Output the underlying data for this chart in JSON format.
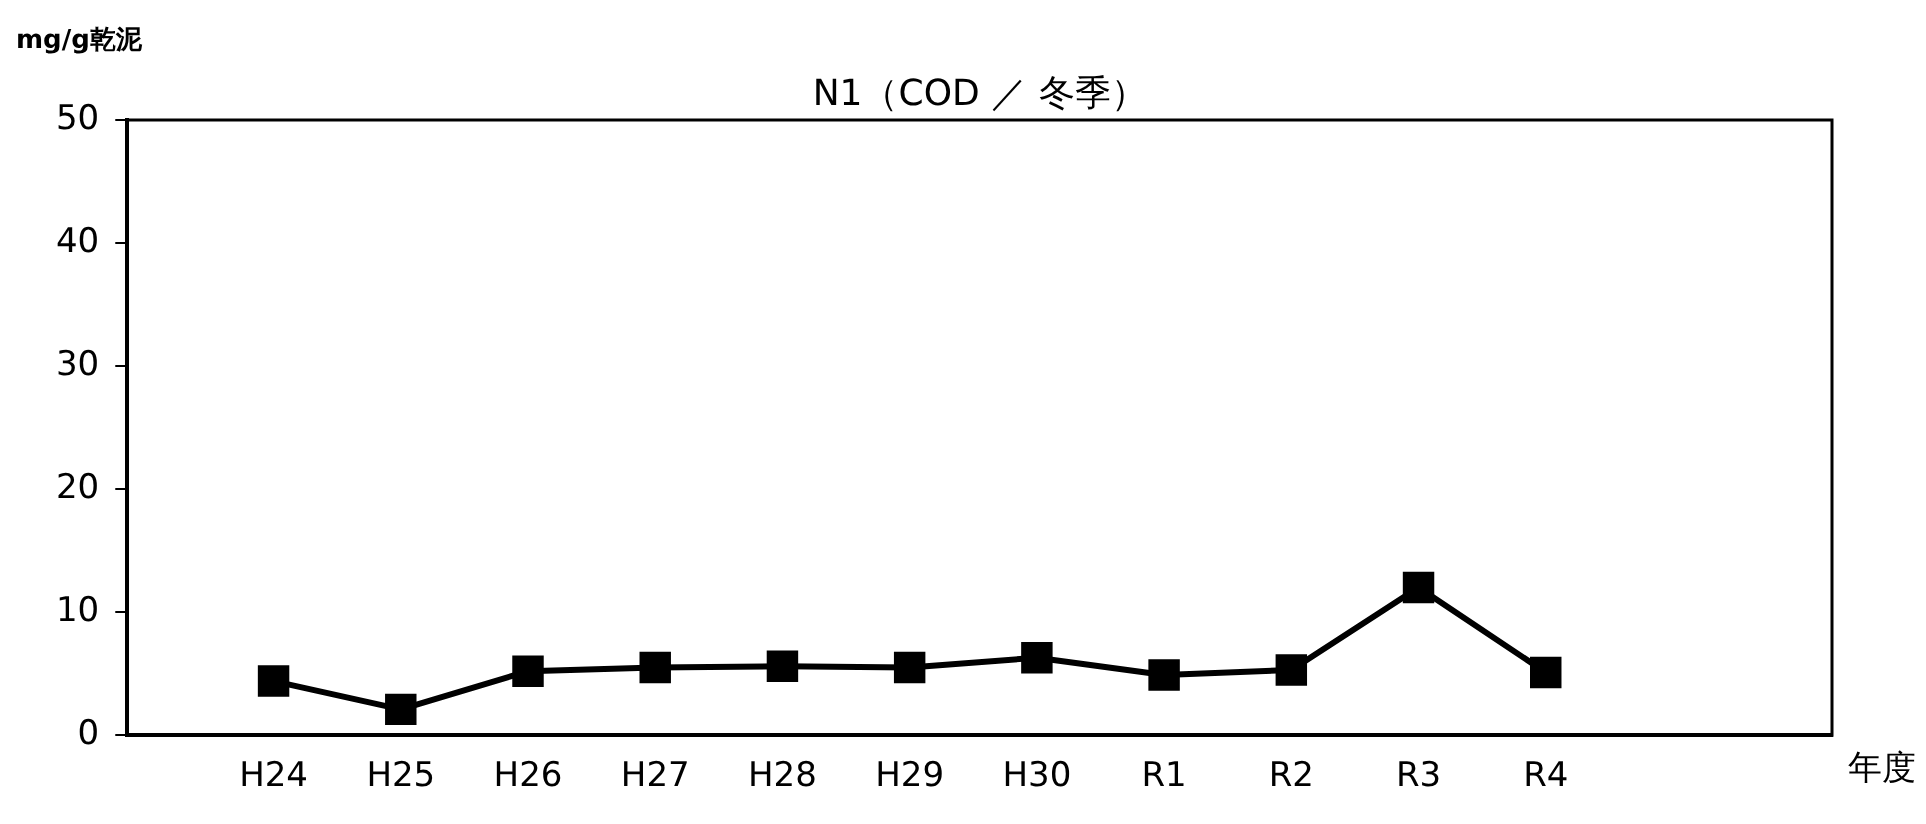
{
  "chart_data": {
    "type": "line",
    "title": "N1（COD ／ 冬季）",
    "annotations": [
      "年度"
    ],
    "ylabel": "mg/g乾泥",
    "categories": [
      "H24",
      "H25",
      "H26",
      "H27",
      "H28",
      "H29",
      "H30",
      "R1",
      "R2",
      "R3",
      "R4"
    ],
    "series": [
      {
        "color": "#000000",
        "values": [
          4.4,
          2.1,
          5.2,
          5.5,
          5.6,
          5.5,
          6.3,
          4.9,
          5.3,
          12.0,
          5.1
        ]
      }
    ],
    "ylim": [
      0,
      50
    ],
    "yticks": [
      0,
      10,
      20,
      30,
      40,
      50
    ],
    "grid": false,
    "legend": false,
    "marker": "square",
    "line_style": "solid"
  }
}
